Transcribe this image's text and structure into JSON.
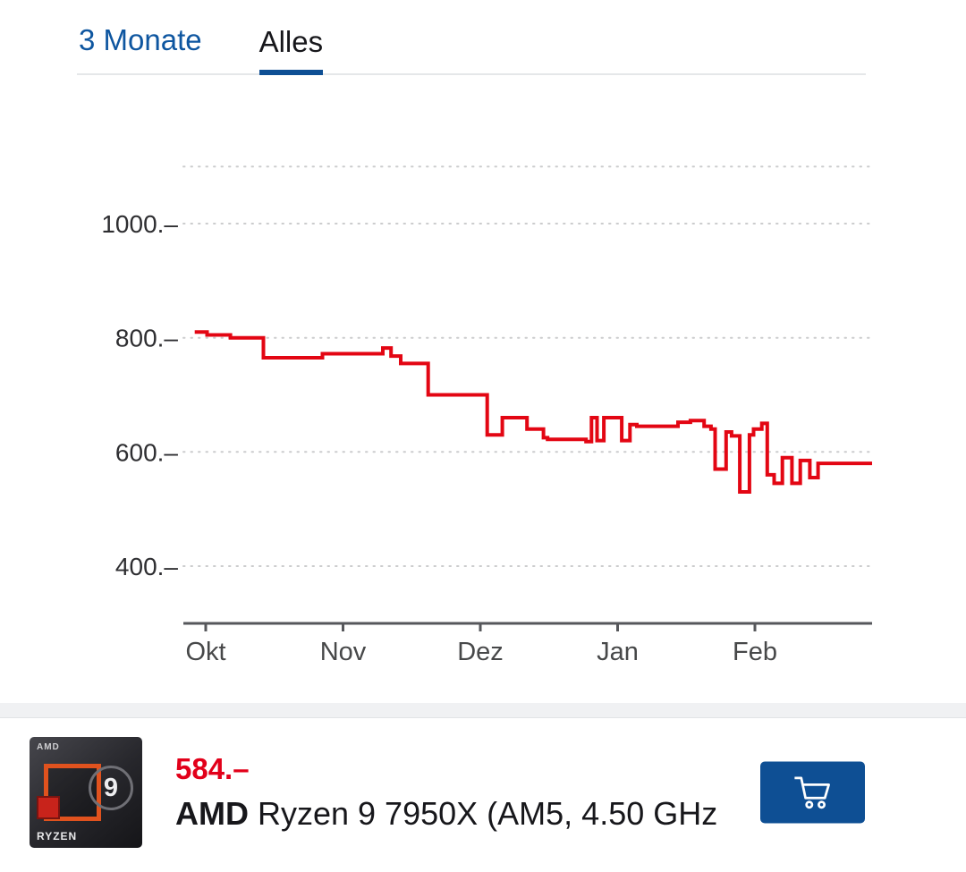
{
  "colors": {
    "accent_blue": "#0e56a0",
    "active_tab_underline": "#0e4f94",
    "price_red": "#e2001a",
    "line_red": "#e30613"
  },
  "tabs": [
    {
      "label": "3 Monate",
      "active": false
    },
    {
      "label": "Alles",
      "active": true
    }
  ],
  "chart_data": {
    "type": "line",
    "step": true,
    "title": "",
    "xlabel": "",
    "ylabel": "",
    "x_ticks": [
      "Okt",
      "Nov",
      "Dez",
      "Jan",
      "Feb"
    ],
    "y_ticks": [
      {
        "label": "1000.–",
        "value": 1000
      },
      {
        "label": "800.–",
        "value": 800
      },
      {
        "label": "600.–",
        "value": 600
      },
      {
        "label": "400.–",
        "value": 400
      }
    ],
    "gridline_values": [
      1100,
      1000,
      800,
      600,
      400
    ],
    "ylim": [
      350,
      1150
    ],
    "legend": "none",
    "line_color": "#e30613",
    "series": [
      {
        "name": "price-history",
        "points": [
          [
            -0.08,
            810
          ],
          [
            0.01,
            805
          ],
          [
            0.18,
            800
          ],
          [
            0.42,
            765
          ],
          [
            0.85,
            772
          ],
          [
            1.29,
            782
          ],
          [
            1.35,
            768
          ],
          [
            1.42,
            755
          ],
          [
            1.62,
            700
          ],
          [
            2.05,
            630
          ],
          [
            2.16,
            660
          ],
          [
            2.34,
            640
          ],
          [
            2.46,
            625
          ],
          [
            2.49,
            622
          ],
          [
            2.77,
            618
          ],
          [
            2.81,
            660
          ],
          [
            2.85,
            620
          ],
          [
            2.9,
            660
          ],
          [
            3.03,
            620
          ],
          [
            3.09,
            648
          ],
          [
            3.14,
            645
          ],
          [
            3.44,
            652
          ],
          [
            3.53,
            655
          ],
          [
            3.63,
            645
          ],
          [
            3.68,
            640
          ],
          [
            3.71,
            570
          ],
          [
            3.79,
            635
          ],
          [
            3.83,
            628
          ],
          [
            3.89,
            530
          ],
          [
            3.96,
            630
          ],
          [
            3.99,
            640
          ],
          [
            4.05,
            650
          ],
          [
            4.09,
            560
          ],
          [
            4.14,
            545
          ],
          [
            4.2,
            590
          ],
          [
            4.27,
            545
          ],
          [
            4.33,
            585
          ],
          [
            4.4,
            555
          ],
          [
            4.46,
            580
          ]
        ]
      }
    ]
  },
  "product": {
    "price": "584.–",
    "brand": "AMD",
    "name": " Ryzen 9 7950X (AM5, 4.50 GHz",
    "box": {
      "brand": "AMD",
      "line": "RYZEN",
      "number": "9"
    }
  }
}
